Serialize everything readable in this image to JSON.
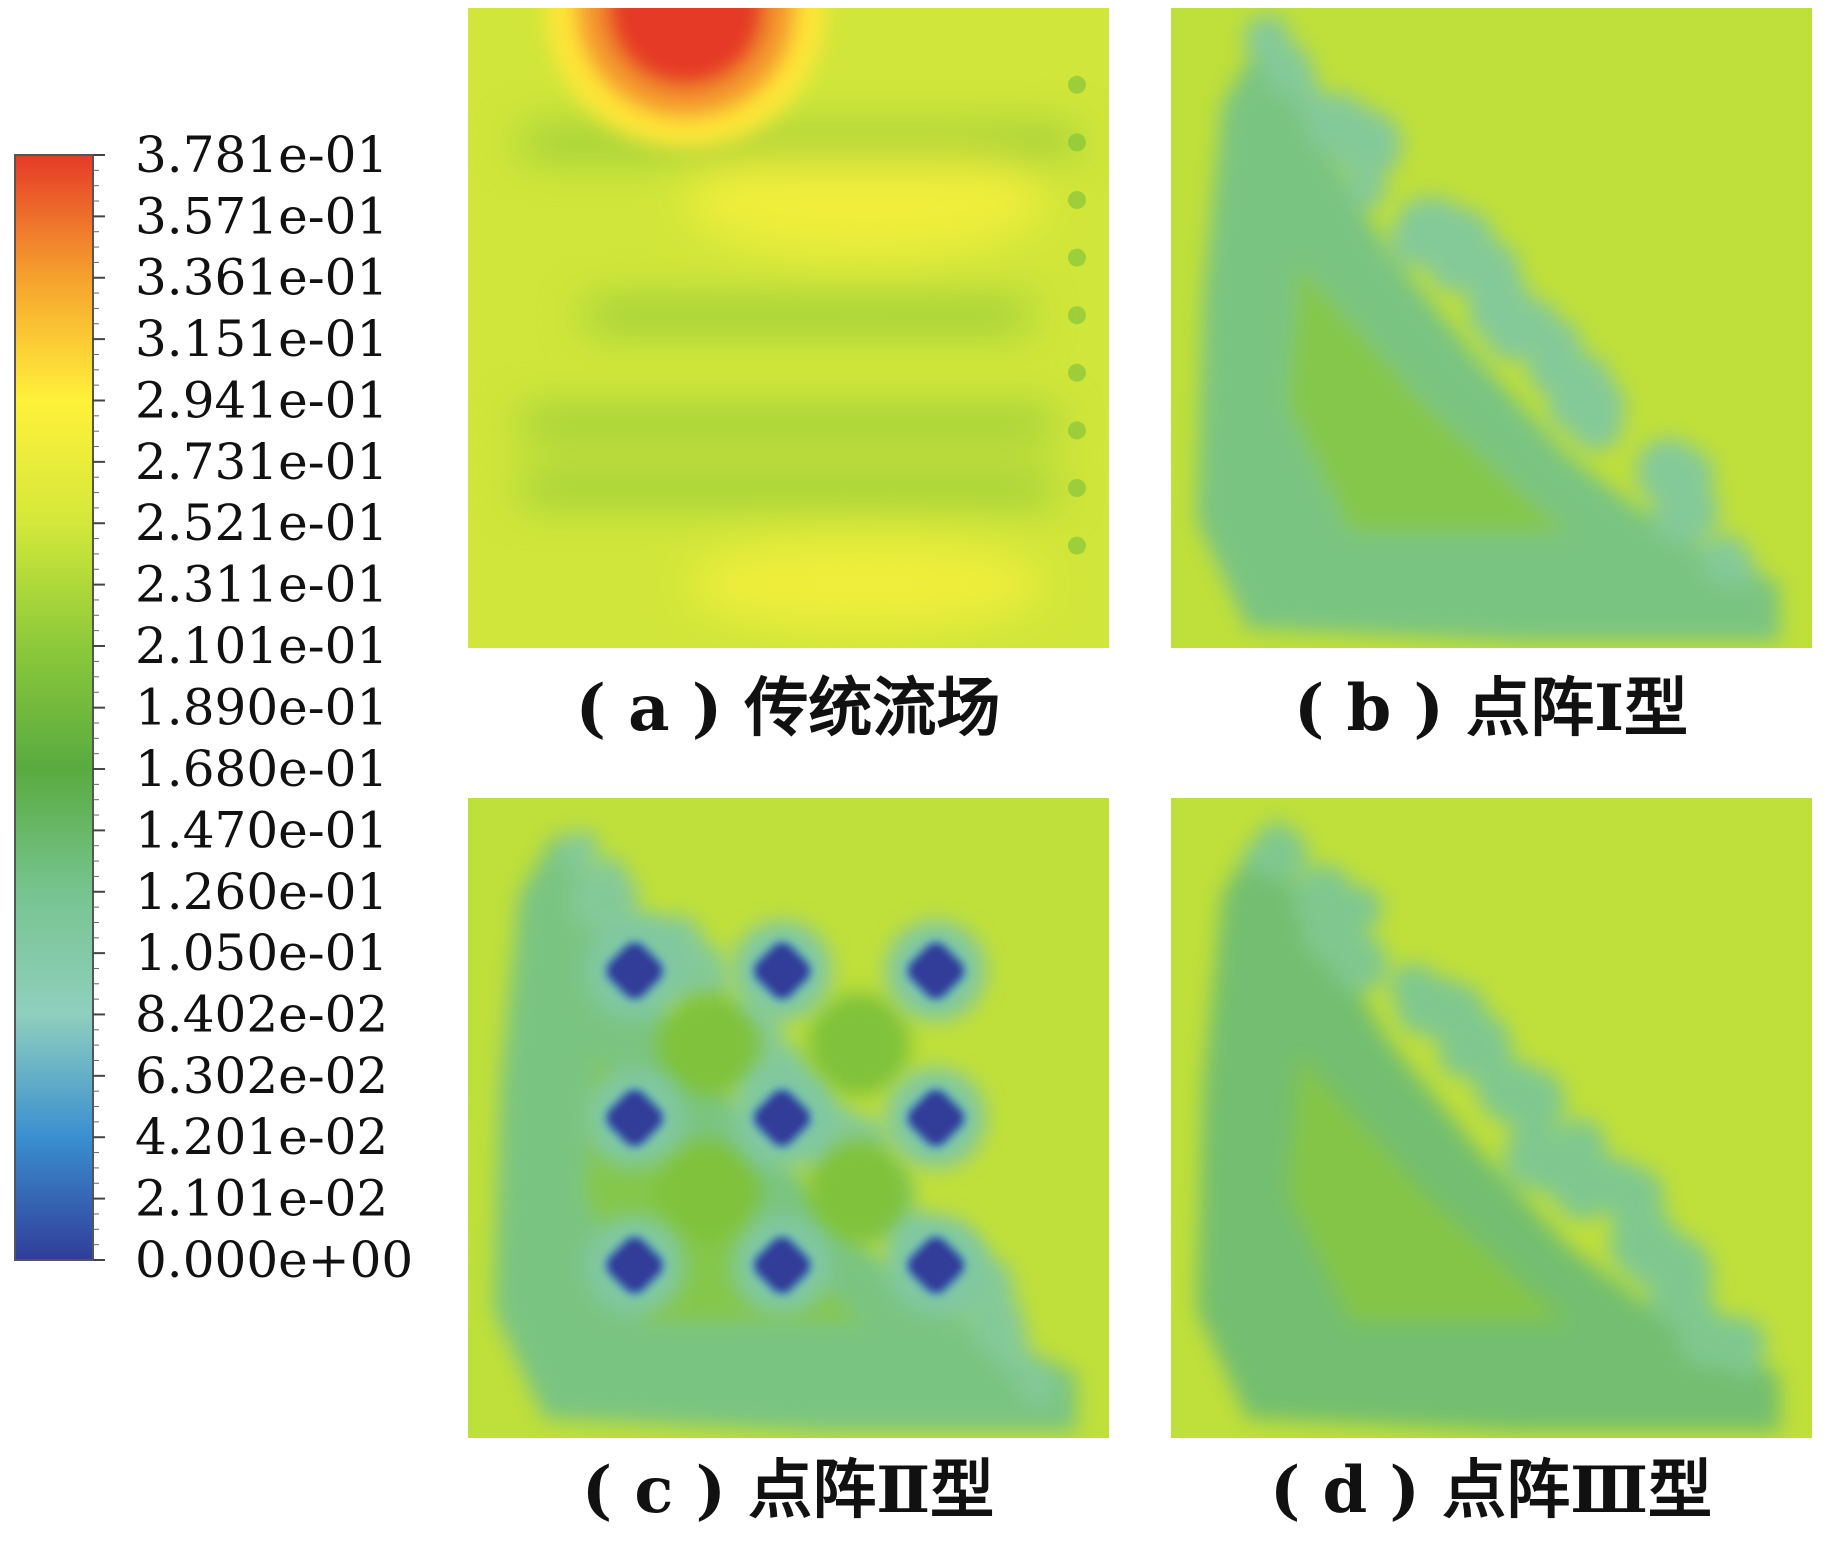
{
  "chart_data": {
    "type": "heatmap",
    "colorbar": {
      "min": 0.0,
      "max": 0.3781,
      "tick_labels": [
        "3.781e-01",
        "3.571e-01",
        "3.361e-01",
        "3.151e-01",
        "2.941e-01",
        "2.731e-01",
        "2.521e-01",
        "2.311e-01",
        "2.101e-01",
        "1.890e-01",
        "1.680e-01",
        "1.470e-01",
        "1.260e-01",
        "1.050e-01",
        "8.402e-02",
        "6.302e-02",
        "4.201e-02",
        "2.101e-02",
        "0.000e+00"
      ],
      "tick_values": [
        0.3781,
        0.3571,
        0.3361,
        0.3151,
        0.2941,
        0.2731,
        0.2521,
        0.2311,
        0.2101,
        0.189,
        0.168,
        0.147,
        0.126,
        0.105,
        0.08402,
        0.06302,
        0.04201,
        0.02101,
        0.0
      ],
      "colors": [
        "#313d99",
        "#3a8fd0",
        "#8fcfbe",
        "#77c48f",
        "#59ab40",
        "#8cc93a",
        "#d3e83a",
        "#fff13a",
        "#f6a22e",
        "#e53a27"
      ]
    },
    "panels": [
      {
        "caption": "( a ) 传统流场",
        "background_value": 0.25,
        "features": [
          {
            "kind": "hotspot",
            "value": 0.3781
          },
          {
            "kind": "band",
            "value": 0.205
          },
          {
            "kind": "band",
            "value": 0.205
          },
          {
            "kind": "band",
            "value": 0.205
          },
          {
            "kind": "band",
            "value": 0.205
          },
          {
            "kind": "warm-band",
            "value": 0.28
          },
          {
            "kind": "warm-band",
            "value": 0.28
          }
        ]
      },
      {
        "caption": "( b ) 点阵Ⅰ型",
        "background_value": 0.24,
        "features": [
          {
            "kind": "low-diagonal",
            "value": 0.13
          }
        ]
      },
      {
        "caption": "( c ) 点阵Ⅱ型",
        "background_value": 0.24,
        "features": [
          {
            "kind": "low-diagonal",
            "value": 0.13
          },
          {
            "kind": "pin-array",
            "rows": 3,
            "cols": 3,
            "value": 0.0
          }
        ]
      },
      {
        "caption": "( d ) 点阵Ⅲ型",
        "background_value": 0.24,
        "features": [
          {
            "kind": "low-diagonal",
            "value": 0.14
          }
        ]
      }
    ]
  }
}
